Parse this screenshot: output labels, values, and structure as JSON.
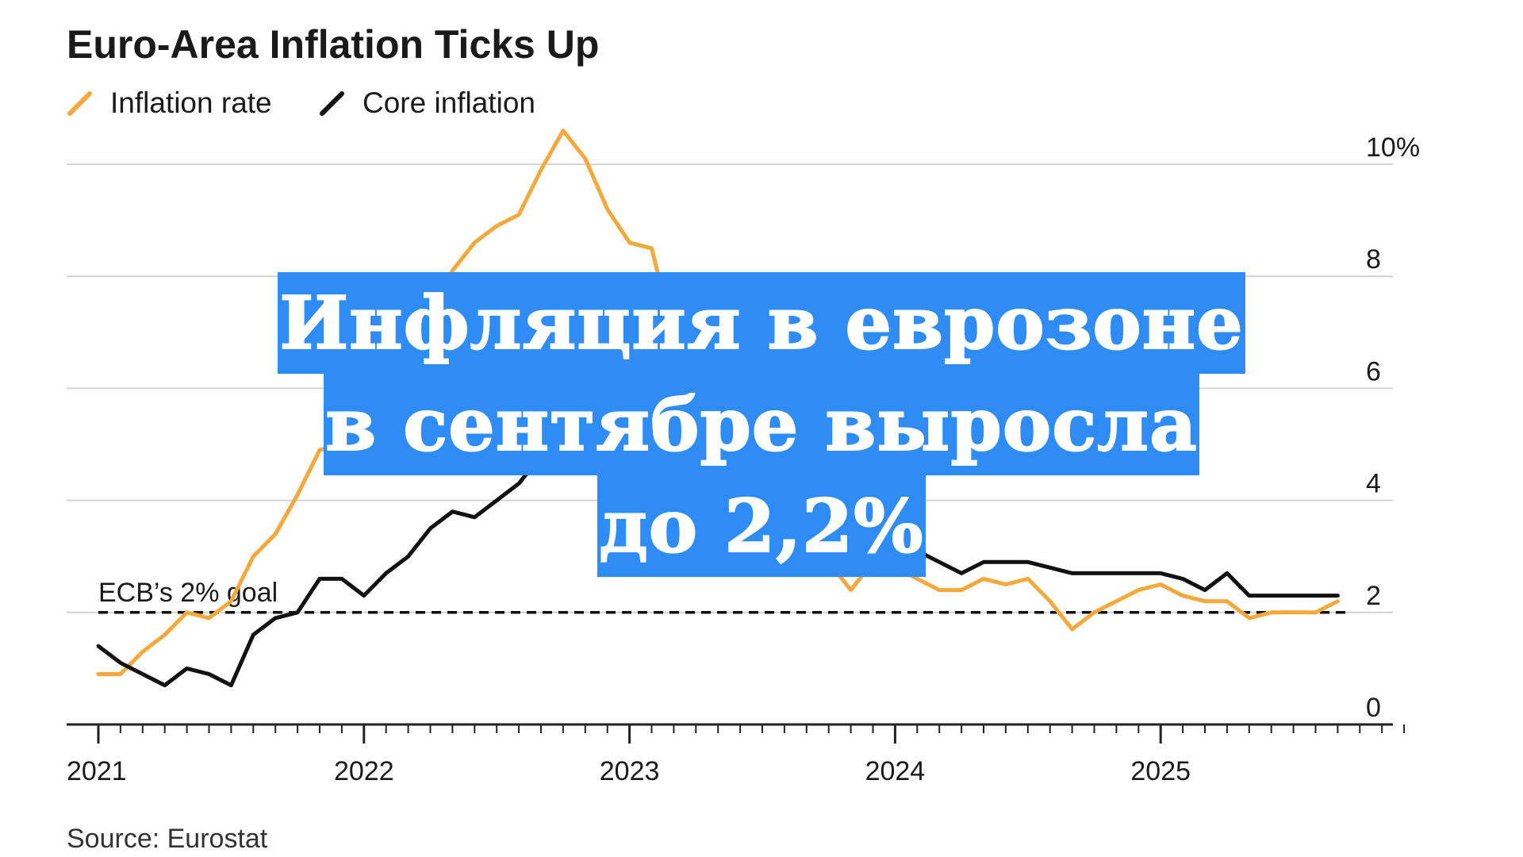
{
  "colors": {
    "inflation": "#f5a83c",
    "core": "#111111",
    "overlay": "#2f8cf5"
  },
  "source": "Source: Eurostat",
  "overlay": {
    "lines": [
      "Инфляция в еврозоне",
      "в сентябре выросла",
      "до 2,2%"
    ]
  },
  "chart_data": {
    "type": "line",
    "title": "Euro-Area Inflation Ticks Up",
    "xlabel": "",
    "ylabel": "",
    "ylim": [
      0,
      10.5
    ],
    "xlim": [
      "2021-01",
      "2025-12"
    ],
    "grid": true,
    "legend_position": "top-left",
    "y_ticks": [
      "0",
      "2",
      "4",
      "6",
      "8",
      "10%"
    ],
    "y_tick_values": [
      0,
      2,
      4,
      6,
      8,
      10
    ],
    "x_ticks": [
      "2021",
      "2022",
      "2023",
      "2024",
      "2025"
    ],
    "annotation": {
      "label": "ECB’s 2% goal",
      "value": 2
    },
    "x": [
      "2021-01",
      "2021-02",
      "2021-03",
      "2021-04",
      "2021-05",
      "2021-06",
      "2021-07",
      "2021-08",
      "2021-09",
      "2021-10",
      "2021-11",
      "2021-12",
      "2022-01",
      "2022-02",
      "2022-03",
      "2022-04",
      "2022-05",
      "2022-06",
      "2022-07",
      "2022-08",
      "2022-09",
      "2022-10",
      "2022-11",
      "2022-12",
      "2023-01",
      "2023-02",
      "2023-03",
      "2023-04",
      "2023-05",
      "2023-06",
      "2023-07",
      "2023-08",
      "2023-09",
      "2023-10",
      "2023-11",
      "2023-12",
      "2024-01",
      "2024-02",
      "2024-03",
      "2024-04",
      "2024-05",
      "2024-06",
      "2024-07",
      "2024-08",
      "2024-09",
      "2024-10",
      "2024-11",
      "2024-12",
      "2025-01",
      "2025-02",
      "2025-03",
      "2025-04",
      "2025-05",
      "2025-06",
      "2025-07",
      "2025-08",
      "2025-09"
    ],
    "series": [
      {
        "name": "Inflation rate",
        "values": [
          0.9,
          0.9,
          1.3,
          1.6,
          2.0,
          1.9,
          2.2,
          3.0,
          3.4,
          4.1,
          4.9,
          5.0,
          5.1,
          5.9,
          7.4,
          7.4,
          8.1,
          8.6,
          8.9,
          9.1,
          9.9,
          10.6,
          10.1,
          9.2,
          8.6,
          8.5,
          6.9,
          7.0,
          6.1,
          5.5,
          5.3,
          5.2,
          4.3,
          2.9,
          2.4,
          2.9,
          2.8,
          2.6,
          2.4,
          2.4,
          2.6,
          2.5,
          2.6,
          2.2,
          1.7,
          2.0,
          2.2,
          2.4,
          2.5,
          2.3,
          2.2,
          2.2,
          1.9,
          2.0,
          2.0,
          2.0,
          2.2
        ]
      },
      {
        "name": "Core inflation",
        "values": [
          1.4,
          1.1,
          0.9,
          0.7,
          1.0,
          0.9,
          0.7,
          1.6,
          1.9,
          2.0,
          2.6,
          2.6,
          2.3,
          2.7,
          3.0,
          3.5,
          3.8,
          3.7,
          4.0,
          4.3,
          4.8,
          5.0,
          5.0,
          5.2,
          5.3,
          5.6,
          5.7,
          5.6,
          5.3,
          5.5,
          5.5,
          5.3,
          4.5,
          4.2,
          3.6,
          3.4,
          3.3,
          3.1,
          2.9,
          2.7,
          2.9,
          2.9,
          2.9,
          2.8,
          2.7,
          2.7,
          2.7,
          2.7,
          2.7,
          2.6,
          2.4,
          2.7,
          2.3,
          2.3,
          2.3,
          2.3,
          2.3
        ]
      }
    ]
  }
}
